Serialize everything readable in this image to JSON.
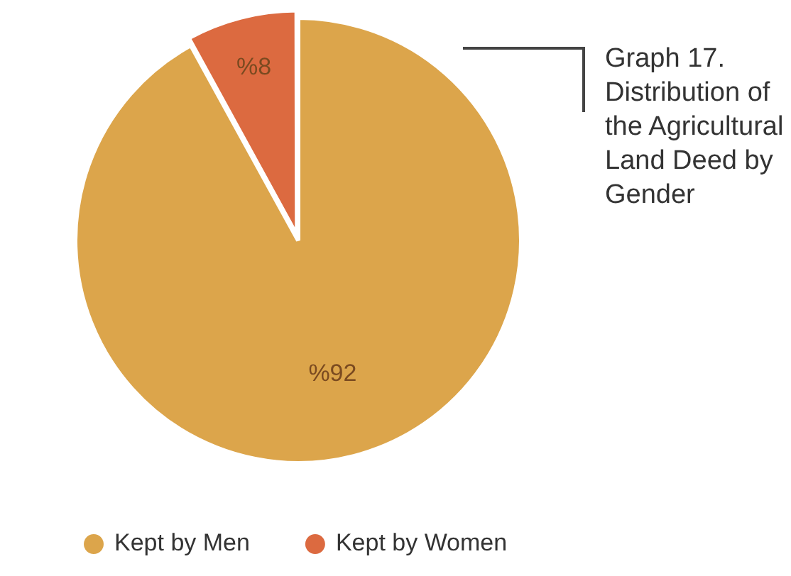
{
  "chart_data": {
    "type": "pie",
    "title": "Graph 17. Distribution of the Agricultural Land Deed by Gender",
    "categories": [
      "Kept by Men",
      "Kept by Women"
    ],
    "values": [
      92,
      8
    ],
    "colors": [
      "#dca54b",
      "#dc6a40"
    ],
    "value_labels": [
      "%92",
      "%8"
    ],
    "legend": "bottom"
  }
}
